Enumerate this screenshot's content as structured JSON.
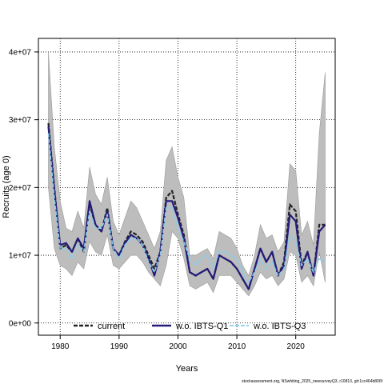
{
  "chart_data": {
    "type": "line",
    "xlabel": "Years",
    "ylabel": "Recruits (age 0)",
    "xlim": [
      1976.3,
      2026.7
    ],
    "ylim": [
      -1800000,
      42000000
    ],
    "x_ticks": [
      1980,
      1990,
      2000,
      2010,
      2020
    ],
    "y_ticks": [
      0,
      10000000,
      20000000,
      30000000,
      40000000
    ],
    "x_tick_labels": [
      "1980",
      "1990",
      "2000",
      "2010",
      "2020"
    ],
    "y_tick_labels": [
      "0e+00",
      "1e+07",
      "2e+07",
      "3e+07",
      "4e+07"
    ],
    "grid": true,
    "legend_position": "bottom",
    "years": [
      1978,
      1979,
      1980,
      1981,
      1982,
      1983,
      1984,
      1985,
      1986,
      1987,
      1988,
      1989,
      1990,
      1991,
      1992,
      1993,
      1994,
      1995,
      1996,
      1997,
      1998,
      1999,
      2000,
      2001,
      2002,
      2003,
      2004,
      2005,
      2006,
      2007,
      2008,
      2009,
      2010,
      2011,
      2012,
      2013,
      2014,
      2015,
      2016,
      2017,
      2018,
      2019,
      2020,
      2021,
      2022,
      2023,
      2024,
      2025
    ],
    "ci_lower": [
      20000000,
      11000000,
      8500000,
      8000000,
      7000000,
      9000000,
      8000000,
      12000000,
      10500000,
      10000000,
      13000000,
      8500000,
      8000000,
      9000000,
      10000000,
      10000000,
      9000000,
      7500000,
      6500000,
      5500000,
      8500000,
      13500000,
      12500000,
      9500000,
      5500000,
      5000000,
      5500000,
      6000000,
      4500000,
      7000000,
      7000000,
      7000000,
      6000000,
      5000000,
      4000000,
      5500000,
      7500000,
      6500000,
      7000000,
      5500000,
      6500000,
      10500000,
      10000000,
      6000000,
      7000000,
      5500000,
      10500000,
      6000000
    ],
    "ci_upper": [
      40000000,
      26000000,
      18000000,
      14000000,
      13500000,
      16500000,
      14000000,
      23000000,
      19000000,
      17500000,
      21500000,
      15000000,
      13000000,
      15500000,
      18000000,
      17000000,
      15000000,
      13000000,
      11000000,
      13500000,
      24000000,
      26000000,
      21500000,
      18500000,
      10000000,
      10000000,
      10500000,
      11000000,
      9500000,
      13500000,
      13000000,
      12500000,
      11000000,
      8500000,
      7000000,
      10000000,
      14500000,
      12500000,
      13000000,
      10500000,
      12000000,
      23500000,
      22500000,
      13000000,
      15000000,
      11500000,
      28000000,
      37000000
    ],
    "series": [
      {
        "name": "current",
        "color": "#222222",
        "dash": "5,2",
        "values": [
          29500000,
          20000000,
          11000000,
          11500000,
          10500000,
          12500000,
          10500000,
          17500000,
          14500000,
          13500000,
          17000000,
          11000000,
          10000000,
          12000000,
          13500000,
          13000000,
          12000000,
          10000000,
          8000000,
          10500000,
          18500000,
          19500000,
          16000000,
          13000000,
          7500000,
          7000000,
          7500000,
          8000000,
          6500000,
          10000000,
          9500000,
          9000000,
          8000000,
          6500000,
          5000000,
          8000000,
          11000000,
          9000000,
          10500000,
          7000000,
          9000000,
          17500000,
          16500000,
          8500000,
          10500000,
          7000000,
          14500000,
          14500000
        ]
      },
      {
        "name": "w.o. IBTS-Q1",
        "color": "#241b7a",
        "dash": "none",
        "values": [
          29000000,
          19500000,
          11500000,
          11800000,
          10500000,
          12500000,
          11000000,
          18000000,
          14500000,
          13500000,
          16500000,
          11000000,
          10000000,
          11800000,
          13000000,
          12500000,
          11500000,
          9500000,
          7000000,
          10500000,
          18000000,
          18000000,
          15500000,
          12500000,
          7500000,
          7000000,
          7500000,
          8000000,
          6500000,
          10000000,
          9500000,
          9000000,
          8000000,
          6500000,
          5000000,
          8000000,
          11000000,
          9000000,
          10500000,
          7000000,
          8500000,
          16000000,
          15000000,
          8000000,
          10500000,
          7000000,
          13500000,
          14500000
        ]
      },
      {
        "name": "w.o. IBTS-Q3",
        "color": "#87ceeb",
        "dash": "5,2",
        "values": [
          28000000,
          18500000,
          11000000,
          11000000,
          9500000,
          11500000,
          10500000,
          16500000,
          14000000,
          14000000,
          16000000,
          11000000,
          9500000,
          11500000,
          12500000,
          12500000,
          11500000,
          9000000,
          7500000,
          10000000,
          17000000,
          17000000,
          14000000,
          12000000,
          9500000,
          8500000,
          9500000,
          10000000,
          8000000,
          10500000,
          10500000,
          10000000,
          9500000,
          7500000,
          6000000,
          7500000,
          9500000,
          8000000,
          9000000,
          7000000,
          8000000,
          13000000,
          12000000,
          8500000,
          9500000,
          7500000,
          9500000,
          9000000
        ]
      }
    ]
  },
  "source_text": "stockassessment.org, NSwhiting_2025_newsurveyQ3, r10813, git:1cc464b806f"
}
